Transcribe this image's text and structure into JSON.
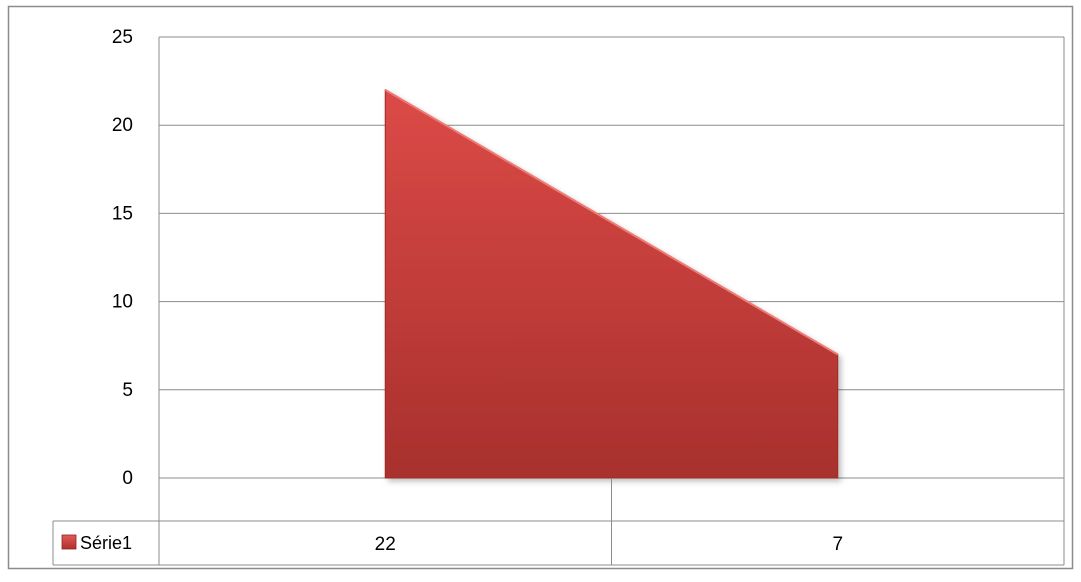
{
  "chart_data": {
    "type": "area",
    "categories": [
      "22",
      "7"
    ],
    "series": [
      {
        "name": "Série1",
        "values": [
          22,
          7
        ],
        "color": "#c0383a"
      }
    ],
    "ylim": [
      0,
      25
    ],
    "yticks": [
      "0",
      "5",
      "10",
      "15",
      "20",
      "25"
    ],
    "grid": true,
    "legend": "data-table-left",
    "data_table": true
  }
}
